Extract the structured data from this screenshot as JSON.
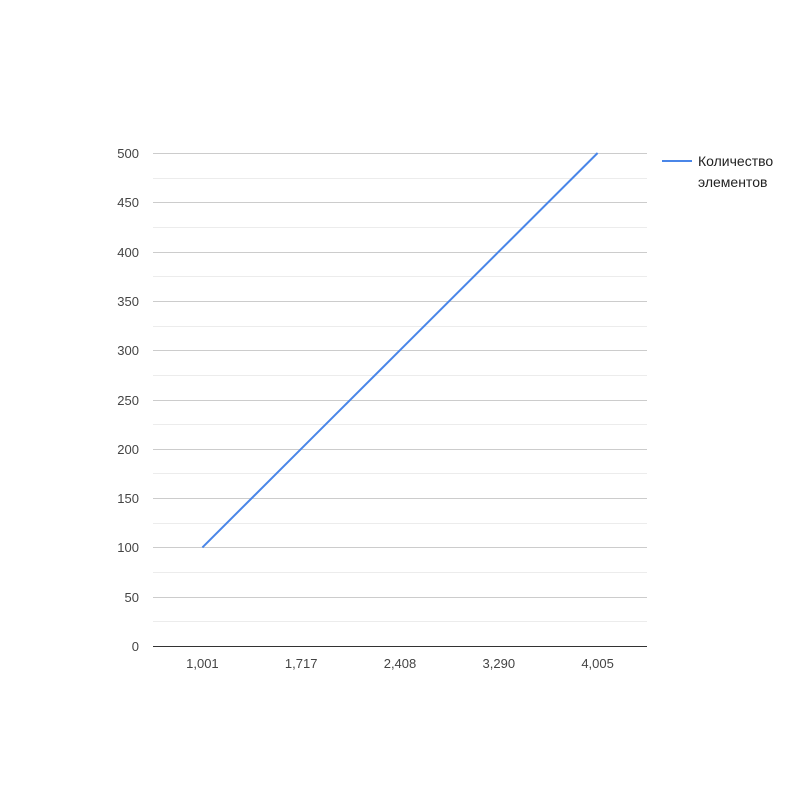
{
  "chart_data": {
    "type": "line",
    "title": "",
    "xlabel": "",
    "ylabel": "",
    "categories": [
      "1,001",
      "1,717",
      "2,408",
      "3,290",
      "4,005"
    ],
    "series": [
      {
        "name": "Количество элементов",
        "name_lines": [
          "Количество",
          "элементов"
        ],
        "color": "#4a86e8",
        "values": [
          100,
          200,
          300,
          400,
          500
        ]
      }
    ],
    "ylim": [
      0,
      500
    ],
    "yticks": [
      "0",
      "50",
      "100",
      "150",
      "200",
      "250",
      "300",
      "350",
      "400",
      "450",
      "500"
    ],
    "grid": true,
    "legend_position": "right"
  }
}
